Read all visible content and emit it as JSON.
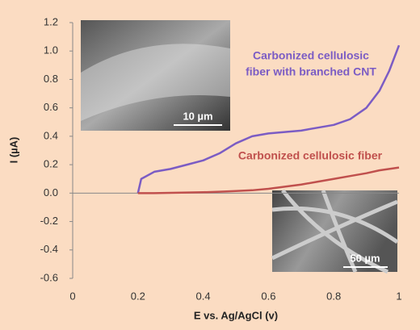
{
  "chart_data": {
    "type": "line",
    "x_label": "E vs. Ag/AgCl (v)",
    "y_label": "I (µA)",
    "x": [
      0.2,
      0.21,
      0.25,
      0.3,
      0.35,
      0.4,
      0.45,
      0.5,
      0.55,
      0.6,
      0.65,
      0.7,
      0.75,
      0.8,
      0.85,
      0.9,
      0.94,
      0.97,
      1.0
    ],
    "series": [
      {
        "name": "Carbonized cellulosic fiber with branched CNT",
        "color": "#7b5cc4",
        "values": [
          0,
          0.1,
          0.15,
          0.17,
          0.2,
          0.23,
          0.28,
          0.35,
          0.4,
          0.42,
          0.43,
          0.44,
          0.46,
          0.48,
          0.52,
          0.6,
          0.72,
          0.86,
          1.04
        ]
      },
      {
        "name": "Carbonized cellulosic fiber",
        "color": "#c0504d",
        "values": [
          0,
          0,
          0,
          0.002,
          0.004,
          0.006,
          0.01,
          0.015,
          0.02,
          0.03,
          0.045,
          0.06,
          0.08,
          0.1,
          0.12,
          0.14,
          0.16,
          0.17,
          0.18
        ]
      }
    ],
    "annotations": [
      {
        "lines": [
          "Carbonized cellulosic",
          "fiber with branched CNT"
        ],
        "color": "#7b5cc4"
      },
      {
        "lines": [
          "Carbonized cellulosic fiber"
        ],
        "color": "#c0504d"
      }
    ],
    "insets": [
      {
        "scale_label": "10 µm"
      },
      {
        "scale_label": "50 µm"
      }
    ],
    "xlim": [
      0,
      1
    ],
    "ylim": [
      -0.6,
      1.2
    ],
    "xticks": [
      0,
      0.2,
      0.4,
      0.6,
      0.8,
      1
    ],
    "yticks": [
      {
        "value": 1.2,
        "label": "1.2"
      },
      {
        "value": 1,
        "label": "1.0"
      },
      {
        "value": 0.8,
        "label": "0.8"
      },
      {
        "value": 0.6,
        "label": "0.6"
      },
      {
        "value": 0.4,
        "label": "0.4"
      },
      {
        "value": 0.2,
        "label": "0.2"
      },
      {
        "value": 0,
        "label": "0.0"
      },
      {
        "value": -0.2,
        "label": "-0.2"
      },
      {
        "value": -0.4,
        "label": "-0.4"
      },
      {
        "value": -0.6,
        "label": "-0.6"
      }
    ]
  }
}
